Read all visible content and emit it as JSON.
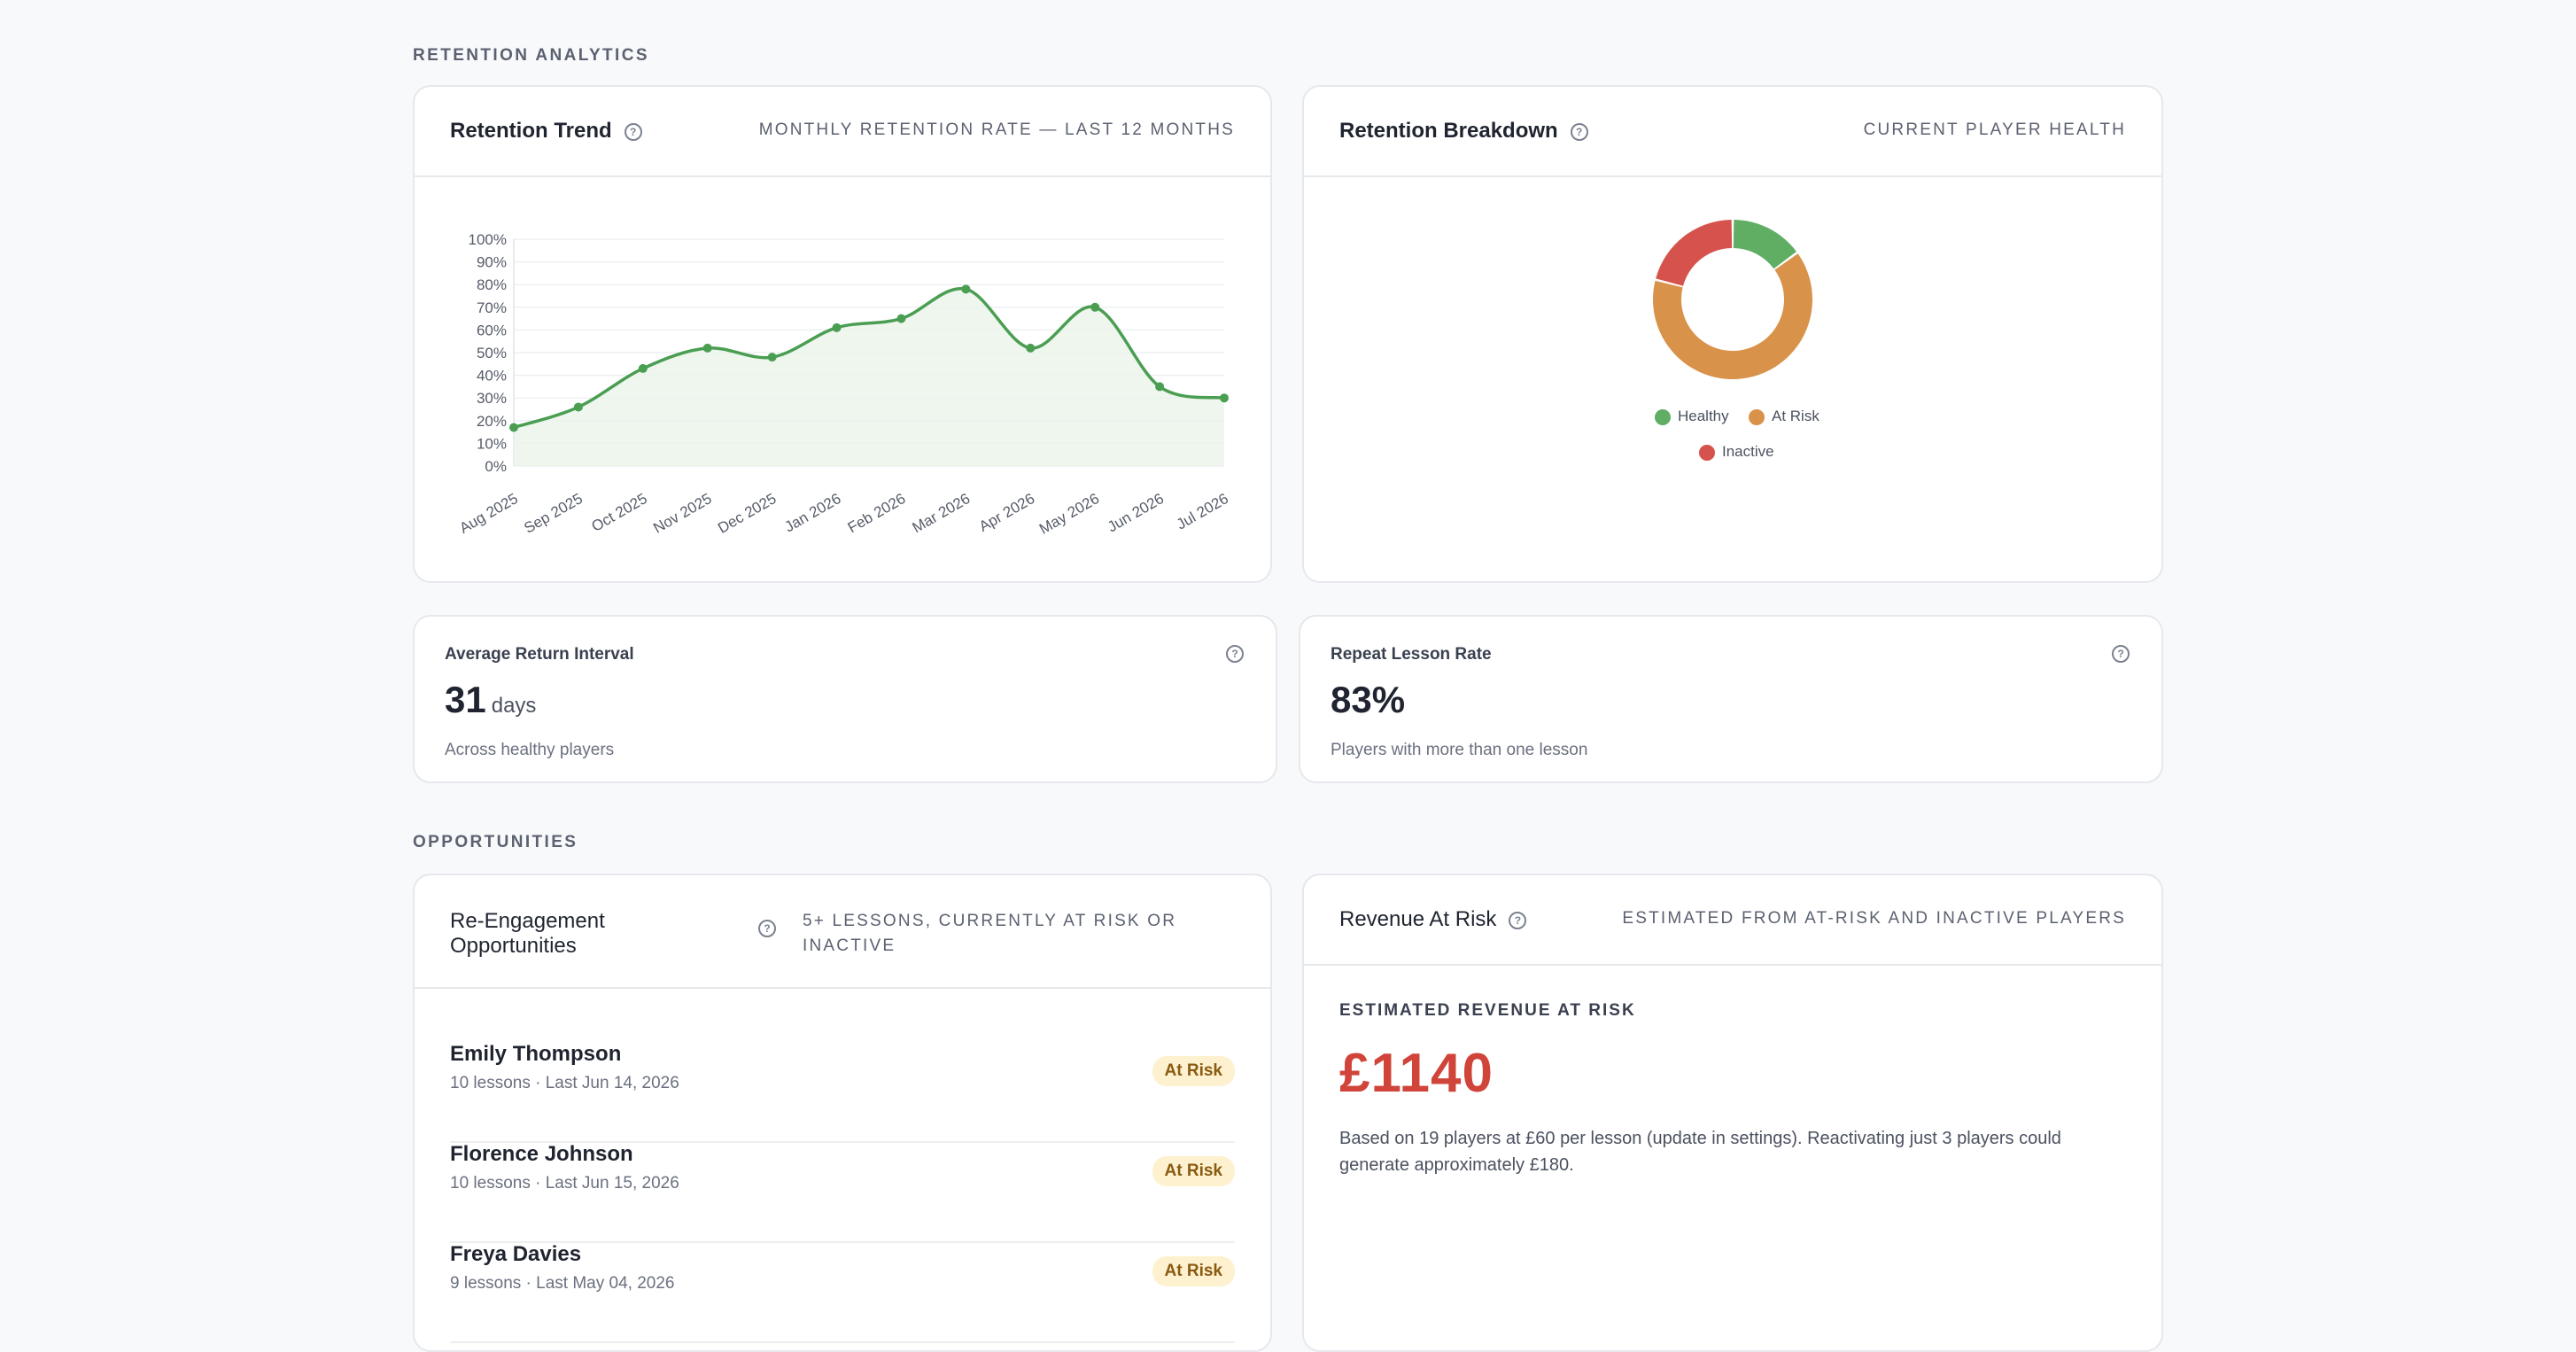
{
  "sections": {
    "retention": "RETENTION ANALYTICS",
    "opportunities": "OPPORTUNITIES"
  },
  "retention_trend": {
    "title": "Retention Trend",
    "subtitle": "MONTHLY RETENTION RATE — LAST 12 MONTHS"
  },
  "retention_breakdown": {
    "title": "Retention Breakdown",
    "subtitle": "CURRENT PLAYER HEALTH"
  },
  "chart_data": [
    {
      "type": "area",
      "title": "",
      "xlabel": "",
      "ylabel": "",
      "categories": [
        "Aug 2025",
        "Sep 2025",
        "Oct 2025",
        "Nov 2025",
        "Dec 2025",
        "Jan 2026",
        "Feb 2026",
        "Mar 2026",
        "Apr 2026",
        "May 2026",
        "Jun 2026",
        "Jul 2026"
      ],
      "series": [
        {
          "values": [
            17,
            26,
            43,
            52,
            48,
            61,
            65,
            78,
            52,
            70,
            35,
            30
          ],
          "color": "#4a9e52"
        }
      ],
      "ylim": [
        0,
        100
      ],
      "yticks": [
        "0%",
        "10%",
        "20%",
        "30%",
        "40%",
        "50%",
        "60%",
        "70%",
        "80%",
        "90%",
        "100%"
      ],
      "grid": true
    },
    {
      "type": "pie",
      "donut": true,
      "labels": [
        "Healthy",
        "At Risk",
        "Inactive"
      ],
      "values": [
        15,
        64,
        21
      ],
      "colors": [
        "#5fae64",
        "#d8924a",
        "#d5534c"
      ],
      "legend_position": "bottom"
    }
  ],
  "avg_return": {
    "label": "Average Return Interval",
    "value": "31",
    "unit": "days",
    "caption": "Across healthy players"
  },
  "repeat_rate": {
    "label": "Repeat Lesson Rate",
    "value": "83%",
    "caption": "Players with more than one lesson"
  },
  "reengagement": {
    "title": "Re-Engagement Opportunities",
    "subtitle": "5+ LESSONS, CURRENTLY AT RISK OR INACTIVE",
    "players": [
      {
        "name": "Emily Thompson",
        "meta": "10 lessons · Last Jun 14, 2026",
        "status": "At Risk"
      },
      {
        "name": "Florence Johnson",
        "meta": "10 lessons · Last Jun 15, 2026",
        "status": "At Risk"
      },
      {
        "name": "Freya Davies",
        "meta": "9 lessons · Last May 04, 2026",
        "status": "At Risk"
      }
    ]
  },
  "revenue": {
    "title": "Revenue At Risk",
    "subtitle": "ESTIMATED FROM AT-RISK AND INACTIVE PLAYERS",
    "label": "ESTIMATED REVENUE AT RISK",
    "value": "£1140",
    "description": "Based on 19 players at £60 per lesson (update in settings). Reactivating just 3 players could generate approximately £180."
  }
}
